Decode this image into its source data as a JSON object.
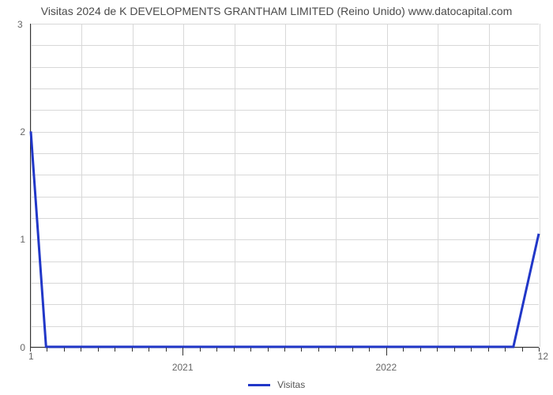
{
  "chart": {
    "type": "line",
    "title": "Visitas 2024 de K DEVELOPMENTS GRANTHAM LIMITED (Reino Unido) www.datocapital.com",
    "title_fontsize": 14,
    "title_color": "#4a4a4a",
    "background_color": "#ffffff",
    "grid_color": "#d8d8d8",
    "axis_color": "#333333",
    "line_color": "#2137c8",
    "line_width": 3,
    "ylim": [
      0,
      3
    ],
    "y_major_ticks": [
      0,
      1,
      2,
      3
    ],
    "y_minor_grid_count": 5,
    "y_top_corner": "3",
    "x_corner_left": "1",
    "x_corner_right": "12",
    "x_major_labels": [
      "2021",
      "2022"
    ],
    "x_major_positions": [
      0.3,
      0.7
    ],
    "x_minor_per_major": 12,
    "x_grid_count": 10,
    "series": {
      "name": "Visitas",
      "points": [
        {
          "x": 0.0,
          "y": 2.0
        },
        {
          "x": 0.03,
          "y": 0.0
        },
        {
          "x": 0.95,
          "y": 0.0
        },
        {
          "x": 1.0,
          "y": 1.05
        }
      ]
    },
    "legend": {
      "label": "Visitas",
      "swatch_color": "#2137c8"
    }
  }
}
